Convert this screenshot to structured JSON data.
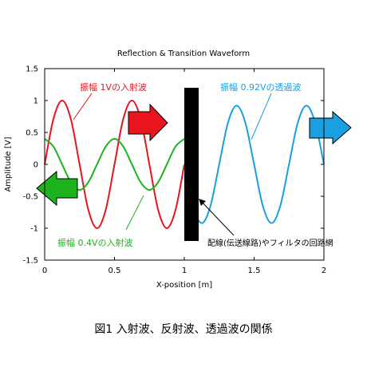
{
  "chart_data": {
    "type": "line",
    "title": "Reflection & Transition Waveform",
    "xlabel": "X-position [m]",
    "ylabel": "Amplitude [V]",
    "xlim": [
      0,
      2
    ],
    "ylim": [
      -1.5,
      1.5
    ],
    "xticks": [
      "0",
      "0.5",
      "1",
      "1.5",
      "2"
    ],
    "yticks": [
      "1.5",
      "1",
      "0.5",
      "0",
      "-0.5",
      "-1",
      "-1.5"
    ],
    "grid": false,
    "legend": "none",
    "series": [
      {
        "name": "振幅 1Vの入射波",
        "color": "#e8141e",
        "x": [
          0,
          0.0625,
          0.125,
          0.1875,
          0.25,
          0.3125,
          0.375,
          0.4375,
          0.5,
          0.5625,
          0.625,
          0.6875,
          0.75,
          0.8125,
          0.875,
          0.9375,
          1.0
        ],
        "y": [
          0,
          0.71,
          1,
          0.71,
          0,
          -0.71,
          -1,
          -0.71,
          0,
          0.71,
          1,
          0.71,
          0,
          -0.71,
          -1,
          -0.71,
          0
        ]
      },
      {
        "name": "振幅 0.4Vの入射波",
        "color": "#1db31d",
        "x": [
          0,
          0.0625,
          0.125,
          0.1875,
          0.25,
          0.3125,
          0.375,
          0.4375,
          0.5,
          0.5625,
          0.625,
          0.6875,
          0.75,
          0.8125,
          0.875,
          0.9375,
          1.0
        ],
        "y": [
          0.4,
          0.28,
          0,
          -0.28,
          -0.4,
          -0.28,
          0,
          0.28,
          0.4,
          0.28,
          0,
          -0.28,
          -0.4,
          -0.28,
          0,
          0.28,
          0.4
        ]
      },
      {
        "name": "振幅 0.92Vの透過波",
        "color": "#1a9fe0",
        "x": [
          1.0,
          1.0625,
          1.125,
          1.1875,
          1.25,
          1.3125,
          1.375,
          1.4375,
          1.5,
          1.5625,
          1.625,
          1.6875,
          1.75,
          1.8125,
          1.875,
          1.9375,
          2.0
        ],
        "y": [
          0,
          -0.65,
          -0.92,
          -0.65,
          0,
          0.65,
          0.92,
          0.65,
          0,
          -0.65,
          -0.92,
          -0.65,
          0,
          0.65,
          0.92,
          0.65,
          0
        ]
      }
    ],
    "annotations": [
      {
        "text": "振幅 1Vの入射波",
        "color": "#e8141e"
      },
      {
        "text": "振幅 0.92Vの透過波",
        "color": "#1a9fe0"
      },
      {
        "text": "振幅 0.4Vの入射波",
        "color": "#1db31d"
      },
      {
        "text": "配線(伝送線路)やフィルタの回路網",
        "color": "#000000"
      }
    ]
  },
  "caption": "図1 入射波、反射波、透過波の関係"
}
